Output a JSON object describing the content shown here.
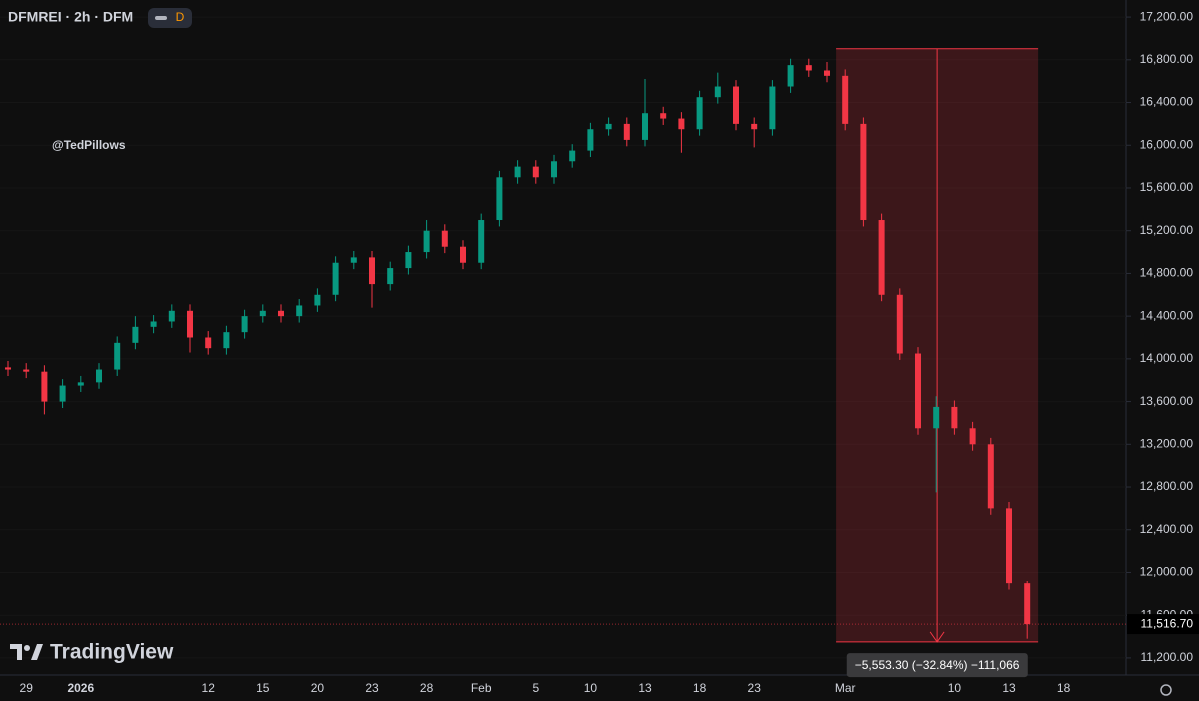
{
  "chart_data": {
    "type": "candlestick",
    "title": "DFMREI · 2h · DFM",
    "badge": "D",
    "watermark": "@TedPillows",
    "logo": "TradingView",
    "up_color": "#089981",
    "down_color": "#f23645",
    "categories": [
      null,
      "29",
      null,
      null,
      "2026",
      null,
      null,
      null,
      null,
      null,
      null,
      "12",
      null,
      null,
      "15",
      null,
      null,
      "20",
      null,
      null,
      "23",
      null,
      null,
      "28",
      null,
      null,
      "Feb",
      null,
      null,
      "5",
      null,
      null,
      "10",
      null,
      null,
      "13",
      null,
      null,
      "18",
      null,
      null,
      "23",
      null,
      null,
      null,
      null,
      "Mar",
      null,
      null,
      null,
      null,
      null,
      "10",
      null,
      null,
      "13",
      null,
      null,
      "18"
    ],
    "open": [
      13920,
      13900,
      13880,
      13600,
      13750,
      13780,
      13900,
      14150,
      14300,
      14350,
      14450,
      14200,
      14100,
      14250,
      14400,
      14450,
      14400,
      14500,
      14600,
      14900,
      14950,
      14700,
      14850,
      15000,
      15200,
      15050,
      14900,
      15300,
      15700,
      15800,
      15700,
      15850,
      15950,
      16150,
      16200,
      16050,
      16300,
      16250,
      16150,
      16450,
      16550,
      16200,
      16150,
      16550,
      16750,
      16700,
      16650,
      16200,
      15300,
      14600,
      14050,
      13350,
      13550,
      13350,
      13200,
      12600,
      11900,
      null,
      null
    ],
    "high": [
      13980,
      13960,
      13940,
      13810,
      13840,
      13960,
      14210,
      14400,
      14410,
      14510,
      14510,
      14260,
      14310,
      14460,
      14510,
      14510,
      14560,
      14660,
      14960,
      15010,
      15010,
      14910,
      15060,
      15300,
      15260,
      15110,
      15360,
      15760,
      15860,
      15860,
      15910,
      16010,
      16210,
      16260,
      16260,
      16620,
      16360,
      16310,
      16510,
      16680,
      16610,
      16260,
      16610,
      16810,
      16810,
      16780,
      16710,
      16260,
      15360,
      14660,
      14110,
      13650,
      13610,
      13410,
      13260,
      12660,
      11920,
      null,
      null
    ],
    "low": [
      13840,
      13820,
      13480,
      13540,
      13690,
      13720,
      13840,
      14090,
      14240,
      14290,
      14060,
      14040,
      14040,
      14190,
      14340,
      14340,
      14340,
      14440,
      14540,
      14840,
      14480,
      14640,
      14790,
      14940,
      14990,
      14840,
      14840,
      15240,
      15640,
      15640,
      15640,
      15790,
      15890,
      16090,
      15990,
      15990,
      16190,
      15930,
      16090,
      16390,
      16140,
      15980,
      16090,
      16490,
      16640,
      16590,
      16140,
      15240,
      14540,
      13990,
      13290,
      12750,
      13290,
      13140,
      12540,
      11840,
      11380,
      null,
      null
    ],
    "close": [
      13900,
      13880,
      13600,
      13750,
      13780,
      13900,
      14150,
      14300,
      14350,
      14450,
      14200,
      14100,
      14250,
      14400,
      14450,
      14400,
      14500,
      14600,
      14900,
      14950,
      14700,
      14850,
      15000,
      15200,
      15050,
      14900,
      15300,
      15700,
      15800,
      15700,
      15850,
      15950,
      16150,
      16200,
      16050,
      16300,
      16250,
      16150,
      16450,
      16550,
      16200,
      16150,
      16550,
      16750,
      16700,
      16650,
      16200,
      15300,
      14600,
      14050,
      13350,
      13550,
      13350,
      13200,
      12600,
      11900,
      11516.7,
      null,
      null
    ],
    "last_close_label": "11,516.70",
    "measure": {
      "from": 16903.3,
      "to": 11350,
      "label": "−5,553.30 (−32.84%) −111,066"
    },
    "ylim": [
      11040,
      17360
    ],
    "yticks": [
      {
        "value": 11200,
        "label": "11,200.00"
      },
      {
        "value": 11600,
        "label": "11,600.00"
      },
      {
        "value": 12000,
        "label": "12,000.00"
      },
      {
        "value": 12400,
        "label": "12,400.00"
      },
      {
        "value": 12800,
        "label": "12,800.00"
      },
      {
        "value": 13200,
        "label": "13,200.00"
      },
      {
        "value": 13600,
        "label": "13,600.00"
      },
      {
        "value": 14000,
        "label": "14,000.00"
      },
      {
        "value": 14400,
        "label": "14,400.00"
      },
      {
        "value": 14800,
        "label": "14,800.00"
      },
      {
        "value": 15200,
        "label": "15,200.00"
      },
      {
        "value": 15600,
        "label": "15,600.00"
      },
      {
        "value": 16000,
        "label": "16,000.00"
      },
      {
        "value": 16400,
        "label": "16,400.00"
      },
      {
        "value": 16800,
        "label": "16,800.00"
      },
      {
        "value": 17200,
        "label": "17,200.00"
      }
    ]
  }
}
